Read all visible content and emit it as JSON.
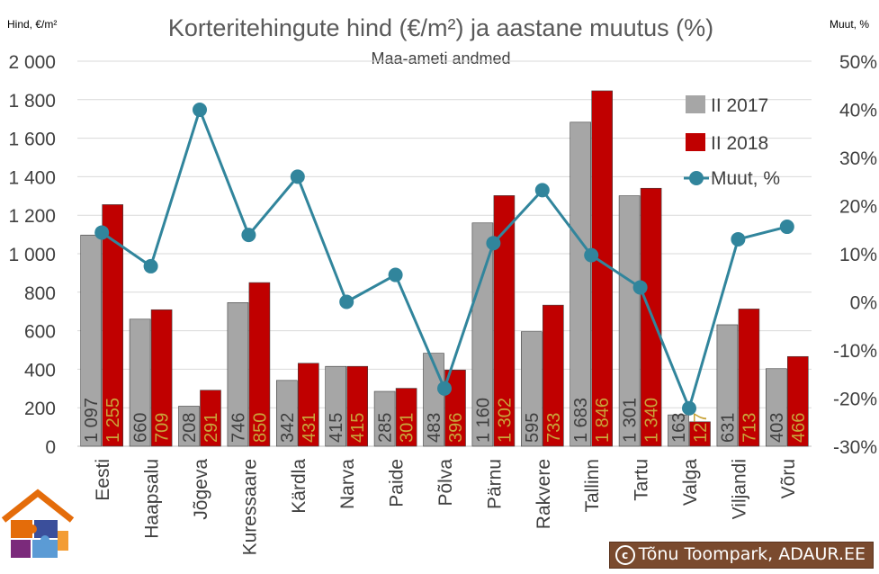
{
  "chart_data": {
    "type": "bar",
    "title": "Korteritehingute hind (€/m²) ja aastane muutus (%)",
    "subtitle": "Maa-ameti andmed",
    "ylabel_left": "Hind, €/m²",
    "ylabel_right": "Muut, %",
    "ylim_left": [
      0,
      2000
    ],
    "ylim_right": [
      -30,
      50
    ],
    "yticks_left": [
      "0",
      "200",
      "400",
      "600",
      "800",
      "1 000",
      "1 200",
      "1 400",
      "1 600",
      "1 800",
      "2 000"
    ],
    "yticks_right": [
      "-30%",
      "-20%",
      "-10%",
      "0%",
      "10%",
      "20%",
      "30%",
      "40%",
      "50%"
    ],
    "legend_position": "top-right",
    "categories": [
      "Eesti",
      "Haapsalu",
      "Jõgeva",
      "Kuressaare",
      "Kärdla",
      "Narva",
      "Paide",
      "Põlva",
      "Pärnu",
      "Rakvere",
      "Tallinn",
      "Tartu",
      "Valga",
      "Viljandi",
      "Võru"
    ],
    "series": [
      {
        "name": "II 2017",
        "kind": "bar",
        "color": "#a6a6a6",
        "values": [
          1097,
          660,
          208,
          746,
          342,
          415,
          285,
          483,
          1160,
          595,
          1683,
          1301,
          163,
          631,
          403
        ],
        "labels": [
          "1 097",
          "660",
          "208",
          "746",
          "342",
          "415",
          "285",
          "483",
          "1 160",
          "595",
          "1 683",
          "1 301",
          "163",
          "631",
          "403"
        ]
      },
      {
        "name": "II 2018",
        "kind": "bar",
        "color": "#c00000",
        "values": [
          1255,
          709,
          291,
          850,
          431,
          415,
          301,
          396,
          1302,
          733,
          1846,
          1340,
          127,
          713,
          466
        ],
        "labels": [
          "1 255",
          "709",
          "291",
          "850",
          "431",
          "415",
          "301",
          "396",
          "1 302",
          "733",
          "1 846",
          "1 340",
          "127",
          "713",
          "466"
        ]
      },
      {
        "name": "Muut, %",
        "kind": "line",
        "color": "#31859c",
        "axis": "right",
        "values": [
          14.4,
          7.4,
          39.9,
          13.9,
          26.0,
          0.0,
          5.6,
          -18.0,
          12.2,
          23.2,
          9.7,
          3.0,
          -22.1,
          13.0,
          15.6
        ]
      }
    ]
  },
  "credit": {
    "symbol": "c",
    "text": "Tõnu Toompark, ADAUR.EE"
  }
}
